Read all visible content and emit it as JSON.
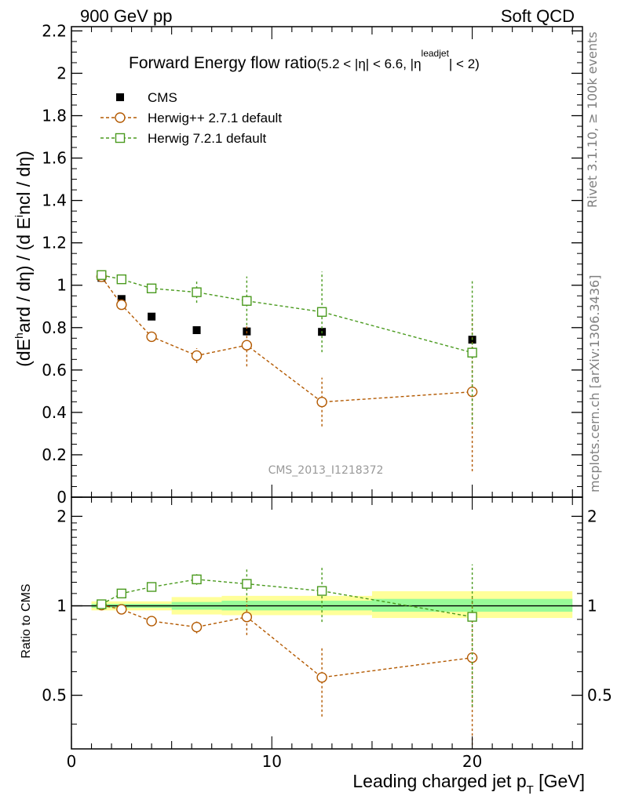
{
  "header": {
    "left": "900 GeV pp",
    "right": "Soft QCD"
  },
  "side_labels": {
    "rivet": "Rivet 3.1.10, ≥ 100k events",
    "mcplots": "mcplots.cern.ch [arXiv:1306.3436]"
  },
  "chart_data": [
    {
      "panel": "main",
      "type": "scatter",
      "title": "Forward Energy flow ratio",
      "title_suffix": "(5.2 < |η| < 6.6, |η",
      "title_sup": "leadjet",
      "title_end": "| < 2)",
      "ylabel": "(dE^hard / dη) / (d E^incl / dη)",
      "xlabel": "",
      "watermark": "CMS_2013_I1218372",
      "xlim": [
        0,
        25.5
      ],
      "ylim": [
        0,
        2.22
      ],
      "yticks": [
        "0",
        "0.2",
        "0.4",
        "0.6",
        "0.8",
        "1",
        "1.2",
        "1.4",
        "1.6",
        "1.8",
        "2",
        "2.2"
      ],
      "legend_position": "top-left",
      "series": [
        {
          "name": "CMS",
          "marker": "filled-square",
          "color": "#000000",
          "line": false,
          "x": [
            1.5,
            2.5,
            4.0,
            6.25,
            8.75,
            12.5,
            20.0
          ],
          "y": [
            1.035,
            0.935,
            0.852,
            0.788,
            0.782,
            0.78,
            0.743
          ],
          "err": [
            0.01,
            0.01,
            0.01,
            0.01,
            0.01,
            0.01,
            0.01
          ]
        },
        {
          "name": "Herwig++ 2.7.1 default",
          "marker": "open-circle",
          "color": "#b35900",
          "line": true,
          "x": [
            1.5,
            2.5,
            4.0,
            6.25,
            8.75,
            12.5,
            20.0
          ],
          "y": [
            1.04,
            0.908,
            0.757,
            0.668,
            0.717,
            0.449,
            0.497
          ],
          "err": [
            0.01,
            0.01,
            0.012,
            0.035,
            0.1,
            0.115,
            0.375
          ]
        },
        {
          "name": "Herwig 7.2.1 default",
          "marker": "open-square",
          "color": "#4a9a1e",
          "line": true,
          "x": [
            1.5,
            2.5,
            4.0,
            6.25,
            8.75,
            12.5,
            20.0
          ],
          "y": [
            1.048,
            1.028,
            0.985,
            0.967,
            0.926,
            0.874,
            0.682
          ],
          "err": [
            0.01,
            0.01,
            0.015,
            0.05,
            0.115,
            0.19,
            0.34
          ]
        }
      ]
    },
    {
      "panel": "ratio",
      "type": "scatter",
      "ylabel": "Ratio to CMS",
      "xlabel": "Leading charged jet p_T [GeV]",
      "xlabel_main": "Leading charged jet p",
      "xlabel_sub": "T",
      "xlabel_end": " [GeV]",
      "xlim": [
        0,
        25.5
      ],
      "ylim": [
        0.33,
        2.32
      ],
      "scale": "log",
      "yticks": [
        "0.5",
        "1",
        "2"
      ],
      "xticks": [
        "0",
        "10",
        "20"
      ],
      "bands": [
        {
          "x0": 1.0,
          "x1": 5.0,
          "inner": [
            0.985,
            1.015
          ],
          "outer": [
            0.965,
            1.035
          ]
        },
        {
          "x0": 5.0,
          "x1": 7.5,
          "inner": [
            0.97,
            1.03
          ],
          "outer": [
            0.935,
            1.07
          ]
        },
        {
          "x0": 7.5,
          "x1": 15.0,
          "inner": [
            0.965,
            1.04
          ],
          "outer": [
            0.93,
            1.08
          ]
        },
        {
          "x0": 15.0,
          "x1": 25.0,
          "inner": [
            0.955,
            1.055
          ],
          "outer": [
            0.91,
            1.12
          ]
        }
      ],
      "series": [
        {
          "name": "Herwig++ 2.7.1 default",
          "marker": "open-circle",
          "color": "#b35900",
          "x": [
            1.5,
            2.5,
            4.0,
            6.25,
            8.75,
            12.5,
            20.0
          ],
          "y": [
            1.005,
            0.973,
            0.888,
            0.848,
            0.917,
            0.574,
            0.669
          ],
          "err": [
            0.01,
            0.01,
            0.012,
            0.04,
            0.12,
            0.15,
            0.39
          ]
        },
        {
          "name": "Herwig 7.2.1 default",
          "marker": "open-square",
          "color": "#4a9a1e",
          "x": [
            1.5,
            2.5,
            4.0,
            6.25,
            8.75,
            12.5,
            20.0
          ],
          "y": [
            1.012,
            1.1,
            1.157,
            1.227,
            1.185,
            1.122,
            0.918
          ],
          "err": [
            0.01,
            0.01,
            0.02,
            0.05,
            0.14,
            0.24,
            0.46
          ]
        }
      ]
    }
  ]
}
